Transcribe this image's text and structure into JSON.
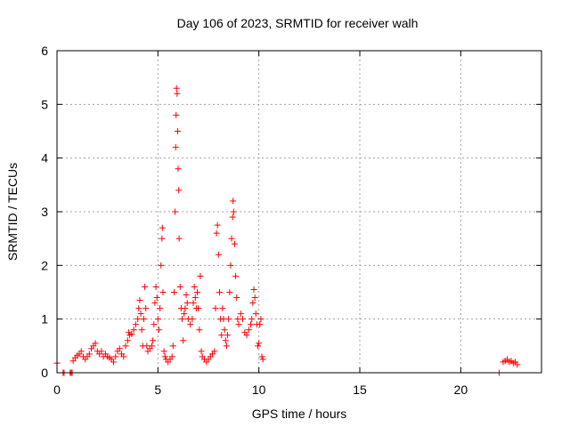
{
  "chart_data": {
    "type": "scatter",
    "title": "Day 106 of 2023, SRMTID for receiver walh",
    "xlabel": "GPS time / hours",
    "ylabel": "SRMTID / TECUs",
    "xlim": [
      0,
      24
    ],
    "ylim": [
      0,
      6
    ],
    "xticks": [
      0,
      5,
      10,
      15,
      20
    ],
    "yticks": [
      0,
      1,
      2,
      3,
      4,
      5,
      6
    ],
    "xtick_labels": [
      "0",
      "5",
      "10",
      "15",
      "20"
    ],
    "ytick_labels": [
      "0",
      "1",
      "2",
      "3",
      "4",
      "5",
      "6"
    ],
    "grid": true,
    "marker": "+",
    "color": "#ff0000",
    "series": [
      {
        "name": "SRMTID",
        "points": [
          [
            0.0,
            0.18
          ],
          [
            0.3,
            0.0
          ],
          [
            0.35,
            0.0
          ],
          [
            0.65,
            0.0
          ],
          [
            0.7,
            0.0
          ],
          [
            0.75,
            0.0
          ],
          [
            0.8,
            0.22
          ],
          [
            0.9,
            0.28
          ],
          [
            1.0,
            0.32
          ],
          [
            1.1,
            0.35
          ],
          [
            1.2,
            0.4
          ],
          [
            1.3,
            0.3
          ],
          [
            1.4,
            0.25
          ],
          [
            1.5,
            0.3
          ],
          [
            1.6,
            0.35
          ],
          [
            1.7,
            0.45
          ],
          [
            1.8,
            0.5
          ],
          [
            1.9,
            0.55
          ],
          [
            2.0,
            0.4
          ],
          [
            2.1,
            0.35
          ],
          [
            2.2,
            0.4
          ],
          [
            2.3,
            0.3
          ],
          [
            2.4,
            0.35
          ],
          [
            2.5,
            0.3
          ],
          [
            2.6,
            0.28
          ],
          [
            2.7,
            0.25
          ],
          [
            2.8,
            0.2
          ],
          [
            2.9,
            0.3
          ],
          [
            3.0,
            0.4
          ],
          [
            3.1,
            0.45
          ],
          [
            3.2,
            0.35
          ],
          [
            3.3,
            0.3
          ],
          [
            3.4,
            0.5
          ],
          [
            3.5,
            0.6
          ],
          [
            3.55,
            0.75
          ],
          [
            3.6,
            0.7
          ],
          [
            3.7,
            0.72
          ],
          [
            3.8,
            0.8
          ],
          [
            3.9,
            0.9
          ],
          [
            4.0,
            1.0
          ],
          [
            4.05,
            1.2
          ],
          [
            4.1,
            1.35
          ],
          [
            4.15,
            1.1
          ],
          [
            4.2,
            0.8
          ],
          [
            4.25,
            0.5
          ],
          [
            4.3,
            1.0
          ],
          [
            4.35,
            1.6
          ],
          [
            4.4,
            1.2
          ],
          [
            4.45,
            0.5
          ],
          [
            4.5,
            0.4
          ],
          [
            4.6,
            0.45
          ],
          [
            4.7,
            0.5
          ],
          [
            4.75,
            0.6
          ],
          [
            4.8,
            0.9
          ],
          [
            4.85,
            1.3
          ],
          [
            4.9,
            1.6
          ],
          [
            4.95,
            1.4
          ],
          [
            5.0,
            1.0
          ],
          [
            5.05,
            0.8
          ],
          [
            5.1,
            1.2
          ],
          [
            5.15,
            2.0
          ],
          [
            5.2,
            2.5
          ],
          [
            5.22,
            2.7
          ],
          [
            5.25,
            1.5
          ],
          [
            5.3,
            0.4
          ],
          [
            5.35,
            0.3
          ],
          [
            5.4,
            0.25
          ],
          [
            5.5,
            0.2
          ],
          [
            5.6,
            0.25
          ],
          [
            5.7,
            0.3
          ],
          [
            5.75,
            0.5
          ],
          [
            5.8,
            1.5
          ],
          [
            5.85,
            3.0
          ],
          [
            5.88,
            4.2
          ],
          [
            5.9,
            4.8
          ],
          [
            5.92,
            5.3
          ],
          [
            5.95,
            5.2
          ],
          [
            5.98,
            4.5
          ],
          [
            6.0,
            3.8
          ],
          [
            6.03,
            3.4
          ],
          [
            6.05,
            2.5
          ],
          [
            6.1,
            1.6
          ],
          [
            6.15,
            1.2
          ],
          [
            6.2,
            1.0
          ],
          [
            6.25,
            0.6
          ],
          [
            6.3,
            1.1
          ],
          [
            6.35,
            1.2
          ],
          [
            6.4,
            1.45
          ],
          [
            6.45,
            1.3
          ],
          [
            6.5,
            1.0
          ],
          [
            6.6,
            0.9
          ],
          [
            6.7,
            1.0
          ],
          [
            6.75,
            1.3
          ],
          [
            6.8,
            1.6
          ],
          [
            6.85,
            1.4
          ],
          [
            6.9,
            1.2
          ],
          [
            6.95,
            1.5
          ],
          [
            7.0,
            1.2
          ],
          [
            7.05,
            0.8
          ],
          [
            7.1,
            1.8
          ],
          [
            7.15,
            0.4
          ],
          [
            7.2,
            0.3
          ],
          [
            7.3,
            0.25
          ],
          [
            7.4,
            0.2
          ],
          [
            7.5,
            0.25
          ],
          [
            7.6,
            0.3
          ],
          [
            7.7,
            0.35
          ],
          [
            7.8,
            0.4
          ],
          [
            7.85,
            1.2
          ],
          [
            7.9,
            2.6
          ],
          [
            7.95,
            2.75
          ],
          [
            8.0,
            2.2
          ],
          [
            8.05,
            1.5
          ],
          [
            8.1,
            1.0
          ],
          [
            8.15,
            0.7
          ],
          [
            8.2,
            1.2
          ],
          [
            8.25,
            1.0
          ],
          [
            8.3,
            0.8
          ],
          [
            8.35,
            0.6
          ],
          [
            8.4,
            0.5
          ],
          [
            8.45,
            0.7
          ],
          [
            8.5,
            1.0
          ],
          [
            8.55,
            1.5
          ],
          [
            8.6,
            2.0
          ],
          [
            8.65,
            2.5
          ],
          [
            8.7,
            2.9
          ],
          [
            8.72,
            3.2
          ],
          [
            8.75,
            3.0
          ],
          [
            8.8,
            2.4
          ],
          [
            8.85,
            1.8
          ],
          [
            8.9,
            1.4
          ],
          [
            8.95,
            1.0
          ],
          [
            9.0,
            0.9
          ],
          [
            9.1,
            1.1
          ],
          [
            9.2,
            1.0
          ],
          [
            9.3,
            0.75
          ],
          [
            9.4,
            0.7
          ],
          [
            9.5,
            0.8
          ],
          [
            9.6,
            0.9
          ],
          [
            9.65,
            1.0
          ],
          [
            9.7,
            1.3
          ],
          [
            9.75,
            1.55
          ],
          [
            9.8,
            1.4
          ],
          [
            9.85,
            1.1
          ],
          [
            9.9,
            0.9
          ],
          [
            9.95,
            0.5
          ],
          [
            10.0,
            0.55
          ],
          [
            10.05,
            0.9
          ],
          [
            10.1,
            1.0
          ],
          [
            10.15,
            0.3
          ],
          [
            10.2,
            0.25
          ],
          [
            21.9,
            0.0
          ],
          [
            22.1,
            0.2
          ],
          [
            22.2,
            0.22
          ],
          [
            22.3,
            0.25
          ],
          [
            22.4,
            0.2
          ],
          [
            22.5,
            0.22
          ],
          [
            22.6,
            0.18
          ],
          [
            22.7,
            0.2
          ],
          [
            22.8,
            0.15
          ]
        ]
      }
    ]
  }
}
